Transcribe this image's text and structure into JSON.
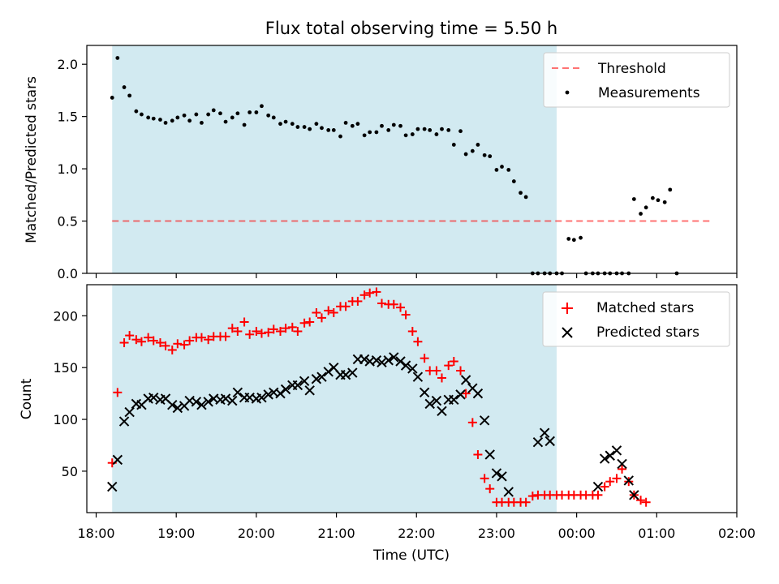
{
  "figure": {
    "title": "Flux total observing time = 5.50 h",
    "xlabel": "Time (UTC)",
    "colors": {
      "shade": "#add8e6",
      "threshold": "#ff0000",
      "matched": "#ff0000",
      "predicted": "#000000",
      "measurements": "#000000"
    }
  },
  "chart_data": [
    {
      "type": "scatter",
      "ylabel": "Matched/Predicted stars",
      "xlim": [
        "17:53",
        "02:00"
      ],
      "ylim": [
        0,
        2.18
      ],
      "yticks": [
        "0.0",
        "0.5",
        "1.0",
        "1.5",
        "2.0"
      ],
      "xticks": [],
      "shaded_span": [
        "18:12",
        "23:45"
      ],
      "legend_position": "top-right",
      "legend": [
        "Threshold",
        "Measurements"
      ],
      "threshold": {
        "name": "Threshold",
        "value": 0.5,
        "x": [
          "18:12",
          "01:40"
        ]
      },
      "series": [
        {
          "name": "Measurements",
          "x": [
            "18:12",
            "18:16",
            "18:21",
            "18:25",
            "18:30",
            "18:34",
            "18:39",
            "18:43",
            "18:48",
            "18:52",
            "18:57",
            "19:01",
            "19:06",
            "19:10",
            "19:15",
            "19:19",
            "19:24",
            "19:28",
            "19:33",
            "19:37",
            "19:42",
            "19:46",
            "19:51",
            "19:55",
            "20:00",
            "20:04",
            "20:09",
            "20:13",
            "20:18",
            "20:22",
            "20:27",
            "20:31",
            "20:36",
            "20:40",
            "20:45",
            "20:49",
            "20:54",
            "20:58",
            "21:03",
            "21:07",
            "21:12",
            "21:16",
            "21:21",
            "21:25",
            "21:30",
            "21:34",
            "21:39",
            "21:43",
            "21:48",
            "21:52",
            "21:57",
            "22:01",
            "22:06",
            "22:10",
            "22:15",
            "22:19",
            "22:24",
            "22:28",
            "22:33",
            "22:37",
            "22:42",
            "22:46",
            "22:51",
            "22:55",
            "23:00",
            "23:04",
            "23:09",
            "23:13",
            "23:18",
            "23:22",
            "23:27",
            "23:31",
            "23:36",
            "23:40",
            "23:45",
            "23:49",
            "23:54",
            "23:58",
            "00:03",
            "00:07",
            "00:12",
            "00:16",
            "00:21",
            "00:25",
            "00:30",
            "00:34",
            "00:39",
            "00:43",
            "00:48",
            "00:52",
            "00:57",
            "01:01",
            "01:06",
            "01:10",
            "01:15",
            "01:19",
            "01:24",
            "01:28",
            "01:33",
            "01:37",
            "01:42"
          ],
          "y": [
            1.68,
            2.06,
            1.78,
            1.7,
            1.55,
            1.52,
            1.49,
            1.48,
            1.47,
            1.44,
            1.46,
            1.49,
            1.51,
            1.46,
            1.52,
            1.44,
            1.52,
            1.56,
            1.53,
            1.45,
            1.49,
            1.53,
            1.42,
            1.54,
            1.54,
            1.6,
            1.51,
            1.49,
            1.43,
            1.45,
            1.43,
            1.4,
            1.4,
            1.38,
            1.43,
            1.39,
            1.37,
            1.37,
            1.31,
            1.44,
            1.41,
            1.43,
            1.32,
            1.35,
            1.35,
            1.41,
            1.37,
            1.42,
            1.41,
            1.32,
            1.33,
            1.38,
            1.38,
            1.37,
            1.33,
            1.38,
            1.37,
            1.23,
            1.36,
            1.14,
            1.17,
            1.23,
            1.13,
            1.12,
            0.99,
            1.02,
            0.99,
            0.88,
            0.77,
            0.73,
            0.0,
            0.0,
            0.0,
            0.0,
            0.0,
            0.0,
            0.33,
            0.32,
            0.34,
            0.0,
            0.0,
            0.0,
            0.0,
            0.0,
            0.0,
            0.0,
            0.0,
            0.71,
            0.57,
            0.63,
            0.72,
            0.7,
            0.68,
            0.8,
            0.0,
            null,
            null,
            null,
            null,
            null,
            null
          ]
        }
      ]
    },
    {
      "type": "scatter",
      "ylabel": "Count",
      "xlim": [
        "17:53",
        "02:00"
      ],
      "ylim": [
        10,
        230
      ],
      "yticks": [
        "50",
        "100",
        "150",
        "200"
      ],
      "xticks": [
        "18:00",
        "19:00",
        "20:00",
        "21:00",
        "22:00",
        "23:00",
        "00:00",
        "01:00",
        "02:00"
      ],
      "shaded_span": [
        "18:12",
        "23:45"
      ],
      "legend_position": "top-right",
      "legend": [
        "Matched stars",
        "Predicted stars"
      ],
      "series": [
        {
          "name": "Matched stars",
          "marker": "+",
          "x": [
            "18:12",
            "18:16",
            "18:21",
            "18:25",
            "18:30",
            "18:34",
            "18:39",
            "18:43",
            "18:48",
            "18:52",
            "18:57",
            "19:01",
            "19:06",
            "19:10",
            "19:15",
            "19:19",
            "19:24",
            "19:28",
            "19:33",
            "19:37",
            "19:42",
            "19:46",
            "19:51",
            "19:55",
            "20:00",
            "20:04",
            "20:09",
            "20:13",
            "20:18",
            "20:22",
            "20:27",
            "20:31",
            "20:36",
            "20:40",
            "20:45",
            "20:49",
            "20:54",
            "20:58",
            "21:03",
            "21:07",
            "21:12",
            "21:16",
            "21:21",
            "21:25",
            "21:30",
            "21:34",
            "21:39",
            "21:43",
            "21:48",
            "21:52",
            "21:57",
            "22:01",
            "22:06",
            "22:10",
            "22:15",
            "22:19",
            "22:24",
            "22:28",
            "22:33",
            "22:37",
            "22:42",
            "22:46",
            "22:51",
            "22:55",
            "23:00",
            "23:04",
            "23:09",
            "23:13",
            "23:18",
            "23:22",
            "23:27",
            "23:31",
            "23:36",
            "23:40",
            "23:45",
            "23:49",
            "23:54",
            "23:58",
            "00:03",
            "00:07",
            "00:12",
            "00:16",
            "00:21",
            "00:25",
            "00:30",
            "00:34",
            "00:39",
            "00:43",
            "00:48",
            "00:52",
            "00:57",
            "01:01",
            "01:06",
            "01:10",
            "01:15",
            "01:19",
            "01:24",
            "01:28",
            "01:33",
            "01:37",
            "01:42"
          ],
          "y": [
            58,
            126,
            174,
            181,
            177,
            175,
            179,
            176,
            174,
            171,
            167,
            173,
            172,
            176,
            179,
            179,
            177,
            180,
            180,
            180,
            188,
            185,
            194,
            182,
            185,
            183,
            184,
            187,
            185,
            188,
            189,
            185,
            193,
            194,
            203,
            198,
            205,
            203,
            209,
            209,
            214,
            214,
            220,
            222,
            223,
            212,
            211,
            211,
            208,
            201,
            185,
            175,
            159,
            147,
            147,
            140,
            152,
            156,
            147,
            125,
            97,
            66,
            43,
            33,
            20,
            20,
            20,
            20,
            20,
            20,
            26,
            27,
            27,
            27,
            27,
            27,
            27,
            27,
            27,
            27,
            27,
            27,
            35,
            40,
            43,
            52,
            40,
            27,
            22,
            20,
            null,
            null,
            null,
            null,
            null,
            null,
            null,
            null,
            null,
            null,
            null
          ]
        },
        {
          "name": "Predicted stars",
          "marker": "x",
          "x": [
            "18:12",
            "18:16",
            "18:21",
            "18:25",
            "18:30",
            "18:34",
            "18:39",
            "18:43",
            "18:48",
            "18:52",
            "18:57",
            "19:01",
            "19:06",
            "19:10",
            "19:15",
            "19:19",
            "19:24",
            "19:28",
            "19:33",
            "19:37",
            "19:42",
            "19:46",
            "19:51",
            "19:55",
            "20:00",
            "20:04",
            "20:09",
            "20:13",
            "20:18",
            "20:22",
            "20:27",
            "20:31",
            "20:36",
            "20:40",
            "20:45",
            "20:49",
            "20:54",
            "20:58",
            "21:03",
            "21:07",
            "21:12",
            "21:16",
            "21:21",
            "21:25",
            "21:30",
            "21:34",
            "21:39",
            "21:43",
            "21:48",
            "21:52",
            "21:57",
            "22:01",
            "22:06",
            "22:10",
            "22:15",
            "22:19",
            "22:24",
            "22:28",
            "22:33",
            "22:37",
            "22:42",
            "22:46",
            "22:51",
            "22:55",
            "23:00",
            "23:04",
            "23:09",
            "23:13",
            "23:18",
            "23:22",
            "23:27",
            "23:31",
            "23:36",
            "23:40",
            "23:45",
            "23:49",
            "23:54",
            "23:58",
            "00:03",
            "00:07",
            "00:12",
            "00:16",
            "00:21",
            "00:25",
            "00:30",
            "00:34",
            "00:39",
            "00:43",
            "00:48",
            "00:52",
            "00:57",
            "01:01",
            "01:06",
            "01:10",
            "01:15",
            "01:19",
            "01:24",
            "01:28",
            "01:33",
            "01:37",
            "01:42"
          ],
          "y": [
            35,
            61,
            98,
            107,
            115,
            114,
            120,
            121,
            119,
            120,
            114,
            111,
            113,
            118,
            117,
            114,
            117,
            120,
            119,
            120,
            118,
            126,
            121,
            121,
            120,
            121,
            124,
            126,
            125,
            129,
            133,
            133,
            137,
            128,
            139,
            141,
            146,
            150,
            143,
            143,
            145,
            158,
            158,
            156,
            157,
            155,
            157,
            160,
            156,
            152,
            149,
            141,
            126,
            115,
            118,
            108,
            119,
            119,
            124,
            138,
            130,
            125,
            99,
            66,
            48,
            45,
            30,
            null,
            null,
            null,
            null,
            78,
            87,
            79,
            null,
            null,
            null,
            null,
            null,
            null,
            null,
            35,
            62,
            65,
            70,
            57,
            41,
            27,
            null,
            null,
            null,
            null,
            null,
            null,
            null,
            null,
            null,
            null,
            null,
            null,
            null
          ]
        }
      ]
    }
  ]
}
